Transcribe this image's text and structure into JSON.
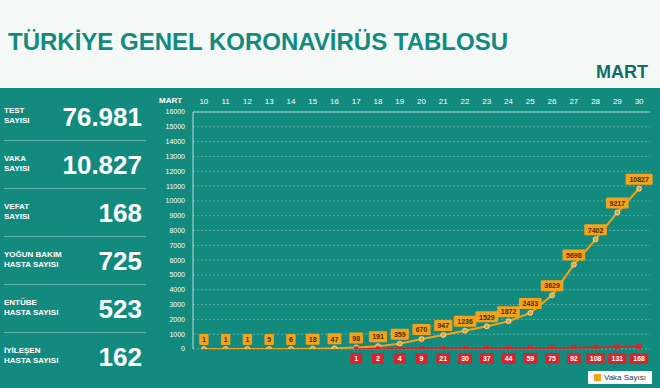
{
  "title": "TÜRKİYE GENEL KORONAVİRÜS TABLOSU",
  "stats": [
    {
      "label": [
        "TEST",
        "SAYISI"
      ],
      "value": "76.981"
    },
    {
      "label": [
        "VAKA",
        "SAYISI"
      ],
      "value": "10.827"
    },
    {
      "label": [
        "VEFAT",
        "SAYISI"
      ],
      "value": "168"
    },
    {
      "label": [
        "YOĞUN BAKIM",
        "HASTA SAYISI"
      ],
      "value": "725"
    },
    {
      "label": [
        "ENTÜBE",
        "HASTA SAYISI"
      ],
      "value": "523"
    },
    {
      "label": [
        "İYİLEŞEN",
        "HASTA SAYISI"
      ],
      "value": "162"
    }
  ],
  "chart_data": {
    "type": "line",
    "subtitle": "MART",
    "x_label": "MART",
    "categories": [
      "10",
      "11",
      "12",
      "13",
      "14",
      "15",
      "16",
      "17",
      "18",
      "19",
      "20",
      "21",
      "22",
      "23",
      "24",
      "25",
      "26",
      "27",
      "28",
      "29",
      "30"
    ],
    "series": [
      {
        "name": "Vaka Sayısı",
        "color": "#f5a21b",
        "marker": "circle",
        "values": [
          1,
          1,
          1,
          5,
          6,
          18,
          47,
          98,
          191,
          359,
          670,
          947,
          1236,
          1529,
          1872,
          2433,
          3629,
          5698,
          7402,
          9217,
          10827
        ]
      },
      {
        "color": "#d7262b",
        "marker": "square",
        "values": [
          null,
          null,
          null,
          null,
          null,
          null,
          null,
          1,
          2,
          4,
          9,
          21,
          30,
          37,
          44,
          59,
          75,
          92,
          108,
          131,
          168
        ]
      }
    ],
    "ylim": [
      0,
      16000
    ],
    "yticks": [
      0,
      1000,
      2000,
      3000,
      4000,
      5000,
      6000,
      7000,
      8000,
      9000,
      10000,
      11000,
      12000,
      13000,
      14000,
      15000,
      16000
    ],
    "grid": true,
    "data_labels": true,
    "legend": "bottom right"
  }
}
